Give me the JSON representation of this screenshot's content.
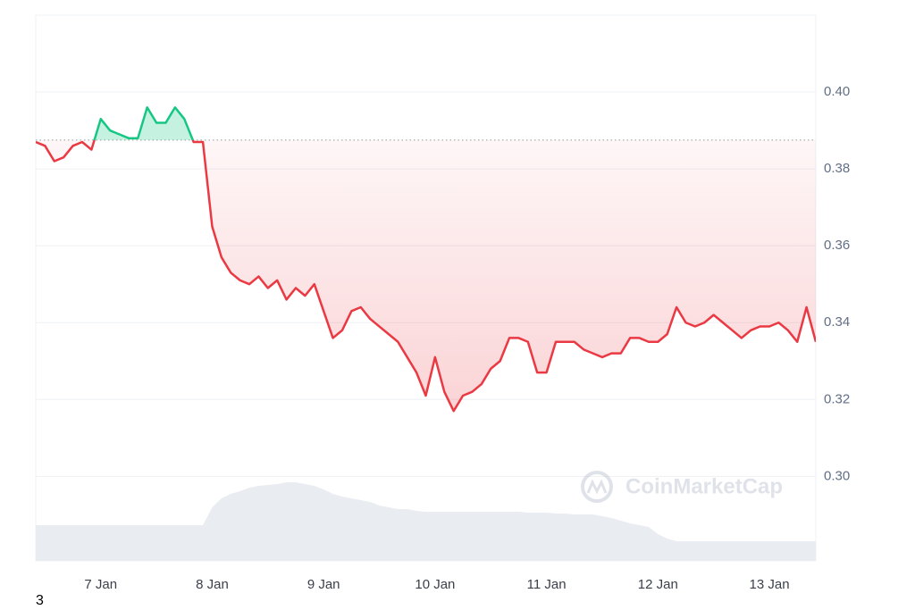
{
  "chart_data": {
    "type": "line",
    "categories": [
      null,
      null,
      null,
      null,
      null,
      null,
      null,
      "7 Jan",
      null,
      null,
      null,
      null,
      null,
      null,
      null,
      null,
      null,
      null,
      null,
      "8 Jan",
      null,
      null,
      null,
      null,
      null,
      null,
      null,
      null,
      null,
      null,
      null,
      "9 Jan",
      null,
      null,
      null,
      null,
      null,
      null,
      null,
      null,
      null,
      null,
      null,
      "10 Jan",
      null,
      null,
      null,
      null,
      null,
      null,
      null,
      null,
      null,
      null,
      null,
      "11 Jan",
      null,
      null,
      null,
      null,
      null,
      null,
      null,
      null,
      null,
      null,
      null,
      "12 Jan",
      null,
      null,
      null,
      null,
      null,
      null,
      null,
      null,
      null,
      null,
      null,
      "13 Jan",
      null,
      null,
      null,
      null,
      null
    ],
    "values": [
      0.387,
      0.386,
      0.382,
      0.383,
      0.386,
      0.387,
      0.385,
      0.393,
      0.39,
      0.389,
      0.388,
      0.388,
      0.396,
      0.392,
      0.392,
      0.396,
      0.393,
      0.387,
      0.387,
      0.365,
      0.357,
      0.353,
      0.351,
      0.35,
      0.352,
      0.349,
      0.351,
      0.346,
      0.349,
      0.347,
      0.35,
      0.343,
      0.336,
      0.338,
      0.343,
      0.344,
      0.341,
      0.339,
      0.337,
      0.335,
      0.331,
      0.327,
      0.321,
      0.331,
      0.322,
      0.317,
      0.321,
      0.322,
      0.324,
      0.328,
      0.33,
      0.336,
      0.336,
      0.335,
      0.327,
      0.327,
      0.335,
      0.335,
      0.335,
      0.333,
      0.332,
      0.331,
      0.332,
      0.332,
      0.336,
      0.336,
      0.335,
      0.335,
      0.337,
      0.344,
      0.34,
      0.339,
      0.34,
      0.342,
      0.34,
      0.338,
      0.336,
      0.338,
      0.339,
      0.339,
      0.34,
      0.338,
      0.335,
      0.344,
      0.335
    ],
    "volume": [
      40,
      40,
      40,
      40,
      40,
      40,
      40,
      40,
      40,
      40,
      40,
      40,
      40,
      40,
      40,
      40,
      40,
      40,
      40,
      60,
      70,
      75,
      78,
      82,
      84,
      85,
      86,
      88,
      88,
      86,
      84,
      80,
      75,
      72,
      70,
      68,
      66,
      62,
      60,
      58,
      58,
      56,
      55,
      55,
      55,
      55,
      55,
      55,
      55,
      55,
      55,
      55,
      55,
      54,
      54,
      54,
      53,
      53,
      52,
      52,
      52,
      50,
      48,
      45,
      42,
      40,
      38,
      30,
      25,
      22,
      22,
      22,
      22,
      22,
      22,
      22,
      22,
      22,
      22,
      22,
      22,
      22,
      22,
      22,
      22
    ],
    "baseline": 0.3875,
    "up_color": "#16c784",
    "down_color": "#ea3943",
    "volume_color": "#e9ecf0",
    "ylim": [
      0.278,
      0.42
    ],
    "yticks": [
      {
        "value": 0.3,
        "label": "0.30"
      },
      0.32,
      0.34,
      0.36,
      0.38,
      {
        "value": 0.4,
        "label": "0.40"
      }
    ],
    "grid": true,
    "watermark": "CoinMarketCap",
    "footnote": "3"
  }
}
